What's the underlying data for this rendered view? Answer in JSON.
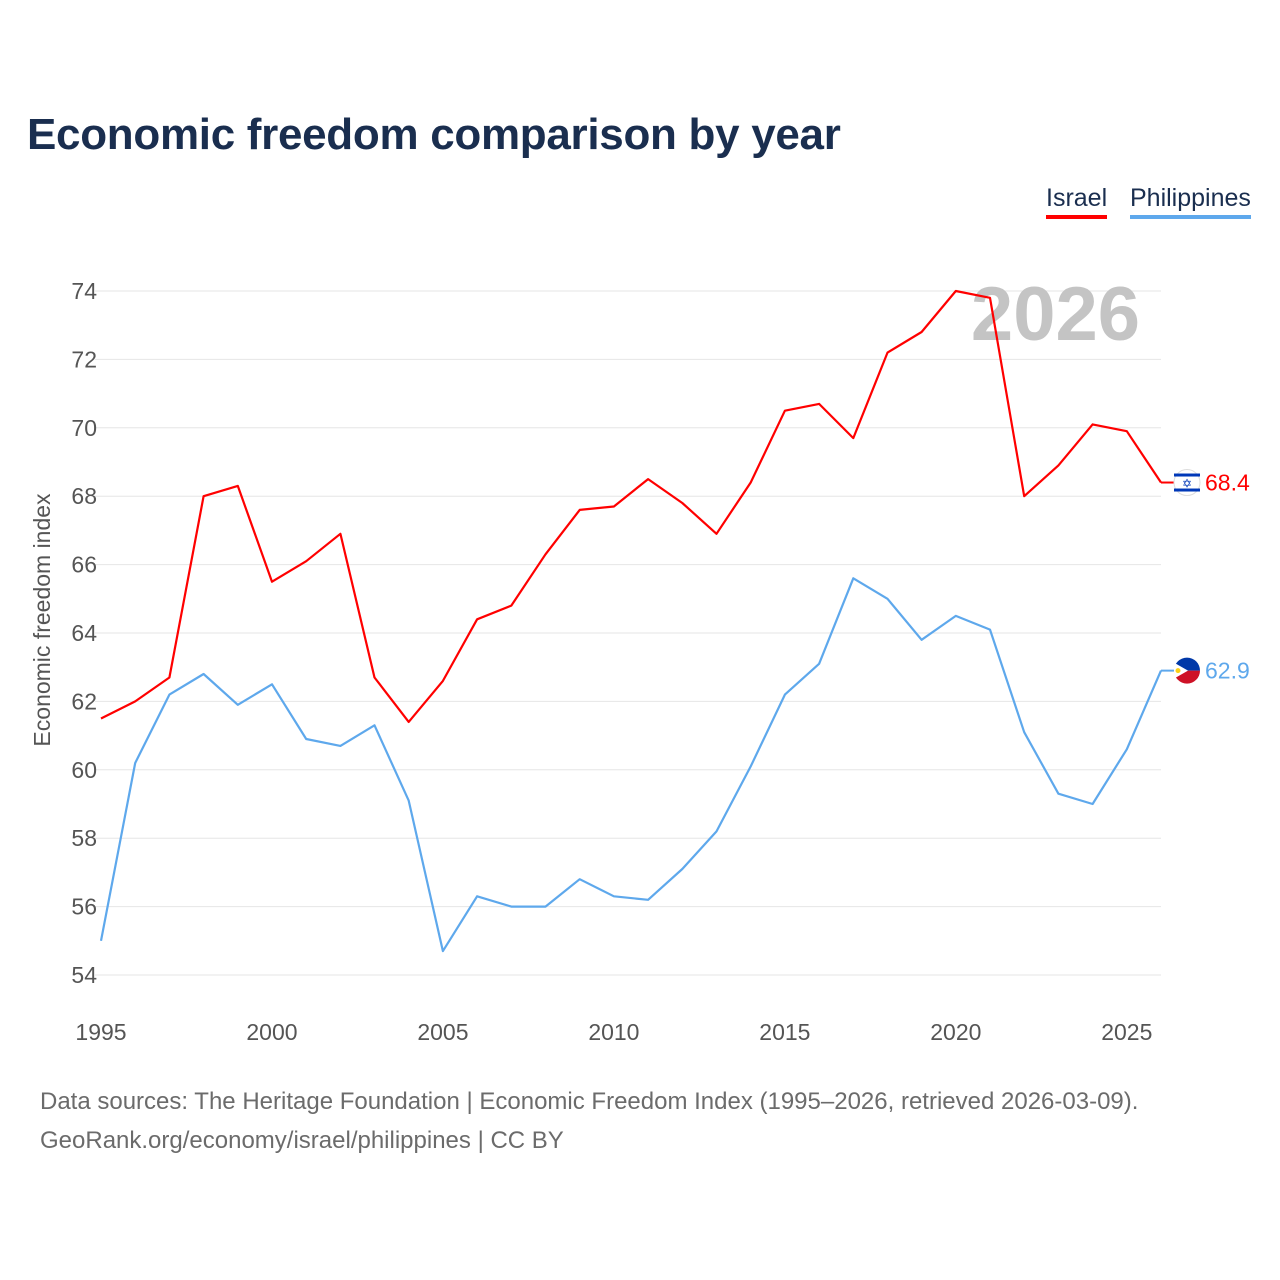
{
  "title": "Economic freedom comparison by year",
  "legend": [
    {
      "label": "Israel",
      "color": "#ff0000"
    },
    {
      "label": "Philippines",
      "color": "#5ea8ec"
    }
  ],
  "year_watermark": "2026",
  "footer": {
    "line1": "Data sources: The Heritage Foundation | Economic Freedom Index (1995–2026, retrieved 2026-03-09).",
    "line2": "GeoRank.org/economy/israel/philippines | CC BY"
  },
  "chart_data": {
    "type": "line",
    "title": "Economic freedom comparison by year",
    "xlabel": "",
    "ylabel": "Economic freedom index",
    "xlim": [
      1995,
      2026
    ],
    "ylim": [
      54,
      74
    ],
    "xticks": [
      1995,
      2000,
      2005,
      2010,
      2015,
      2020,
      2025
    ],
    "yticks": [
      54,
      56,
      58,
      60,
      62,
      64,
      66,
      68,
      70,
      72,
      74
    ],
    "grid": true,
    "legend_position": "top-right",
    "x": [
      1995,
      1996,
      1997,
      1998,
      1999,
      2000,
      2001,
      2002,
      2003,
      2004,
      2005,
      2006,
      2007,
      2008,
      2009,
      2010,
      2011,
      2012,
      2013,
      2014,
      2015,
      2016,
      2017,
      2018,
      2019,
      2020,
      2021,
      2022,
      2023,
      2024,
      2025,
      2026
    ],
    "series": [
      {
        "name": "Israel",
        "color": "#ff0000",
        "end_label": "68.4",
        "flag": "israel-flag",
        "values": [
          61.5,
          62.0,
          62.7,
          68.0,
          68.3,
          65.5,
          66.1,
          66.9,
          62.7,
          61.4,
          62.6,
          64.4,
          64.8,
          66.3,
          67.6,
          67.7,
          68.5,
          67.8,
          66.9,
          68.4,
          70.5,
          70.7,
          69.7,
          72.2,
          72.8,
          74.0,
          73.8,
          68.0,
          68.9,
          70.1,
          69.9,
          68.4
        ]
      },
      {
        "name": "Philippines",
        "color": "#5ea8ec",
        "end_label": "62.9",
        "flag": "philippines-flag",
        "values": [
          55.0,
          60.2,
          62.2,
          62.8,
          61.9,
          62.5,
          60.9,
          60.7,
          61.3,
          59.1,
          54.7,
          56.3,
          56.0,
          56.0,
          56.8,
          56.3,
          56.2,
          57.1,
          58.2,
          60.1,
          62.2,
          63.1,
          65.6,
          65.0,
          63.8,
          64.5,
          64.1,
          61.1,
          59.3,
          59.0,
          60.6,
          62.9
        ]
      }
    ]
  }
}
